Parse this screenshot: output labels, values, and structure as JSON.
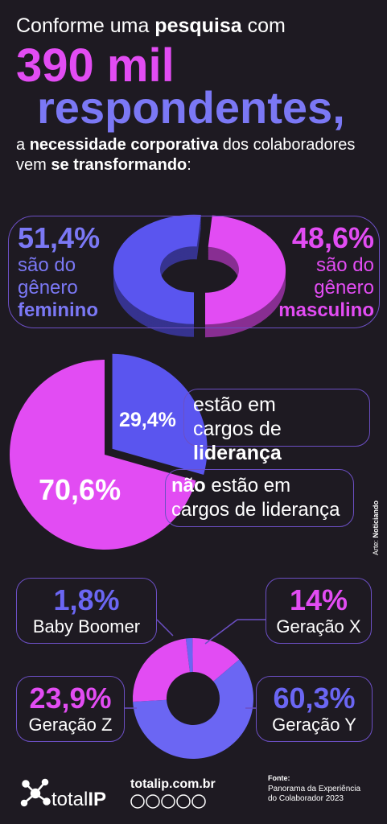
{
  "header": {
    "line1": [
      "Conforme uma ",
      "pesquisa",
      " com"
    ],
    "highlight1": "390 mil",
    "highlight2": "respondentes,",
    "line3": [
      "a ",
      "necessidade corporativa",
      " dos colaboradores vem ",
      "se transformando",
      ":"
    ]
  },
  "chart_data": [
    {
      "type": "donut",
      "label_prefix": "são do gênero",
      "categories": [
        "feminino",
        "masculino"
      ],
      "values": [
        51.4,
        48.6
      ],
      "value_labels": [
        "51,4%",
        "48,6%"
      ],
      "colors": [
        "#5a55ef",
        "#e24cf3"
      ]
    },
    {
      "type": "pie",
      "categories": [
        {
          "pre": "estão em cargos de ",
          "bold": "liderança"
        },
        {
          "bold": "não",
          "post": " estão em cargos de liderança"
        }
      ],
      "values": [
        29.4,
        70.6
      ],
      "value_labels": [
        "29,4%",
        "70,6%"
      ],
      "colors": [
        "#5a55ef",
        "#e24cf3"
      ]
    },
    {
      "type": "donut",
      "categories": [
        "Baby Boomer",
        "Geração X",
        "Geração Y",
        "Geração Z"
      ],
      "values": [
        1.8,
        14,
        60.3,
        23.9
      ],
      "value_labels": [
        "1,8%",
        "14%",
        "60,3%",
        "23,9%"
      ],
      "colors": [
        "#6b66f3",
        "#e24cf3",
        "#6b66f3",
        "#e24cf3"
      ]
    }
  ],
  "footer": {
    "brand": [
      "total",
      "IP"
    ],
    "site": "totalip.com.br",
    "source_label": "Fonte:",
    "source": "Panorama da Experiência do Colaborador 2023",
    "credit": [
      "Arte: ",
      "Noticiando"
    ]
  }
}
